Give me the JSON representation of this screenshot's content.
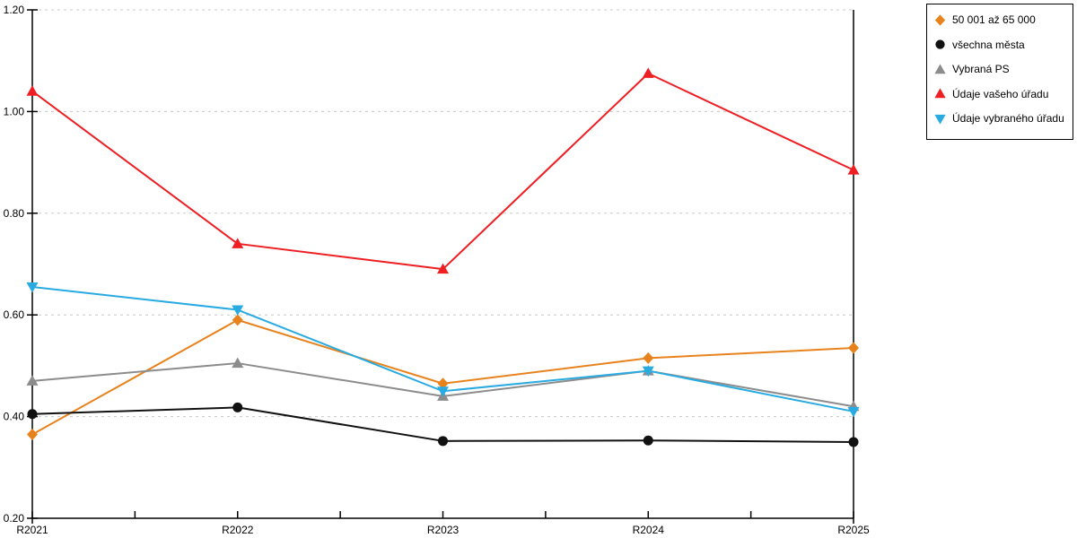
{
  "chart_data": {
    "type": "line",
    "title": "",
    "xlabel": "",
    "ylabel": "",
    "x_categories": [
      "R2021",
      "R2022",
      "R2023",
      "R2024",
      "R2025"
    ],
    "y_axis": {
      "min": 0.2,
      "max": 1.2,
      "step": 0.2,
      "tick_labels": [
        "0.20",
        "0.40",
        "0.60",
        "0.80",
        "1.00",
        "1.20"
      ]
    },
    "grid": "horizontal-dashed",
    "grid_color": "#c8c8c8",
    "axis_color": "#000000",
    "legend_position": "top-right",
    "series": [
      {
        "name": "50 001 až 65 000",
        "marker": "diamond",
        "color": "#e8821d",
        "values": [
          0.365,
          0.59,
          0.465,
          0.515,
          0.535
        ]
      },
      {
        "name": "všechna města",
        "marker": "circle",
        "color": "#111111",
        "values": [
          0.405,
          0.418,
          0.352,
          0.353,
          0.35
        ]
      },
      {
        "name": "Vybraná PS",
        "marker": "triangle-up",
        "color": "#8c8c8c",
        "values": [
          0.47,
          0.505,
          0.44,
          0.49,
          0.42
        ]
      },
      {
        "name": "Údaje vašeho úřadu",
        "marker": "triangle-up",
        "color": "#ee1e23",
        "values": [
          1.04,
          0.74,
          0.69,
          1.075,
          0.885
        ]
      },
      {
        "name": "Údaje vybraného úřadu",
        "marker": "triangle-down",
        "color": "#29abe2",
        "values": [
          0.655,
          0.61,
          0.45,
          0.49,
          0.41
        ]
      }
    ]
  }
}
